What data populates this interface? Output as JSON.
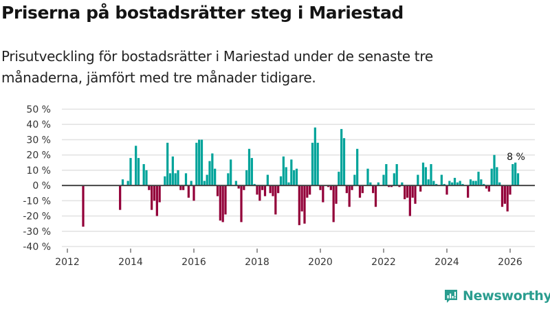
{
  "header": {
    "title": "Priserna på bostadsrätter steg i Mariestad",
    "subtitle": "Prisutveckling för bostadsrätter i Mariestad under de senaste tre månaderna, jämfört med tre månader tidigare."
  },
  "branding": {
    "logo_icon": "bar-chart-speech-bubble-icon",
    "name": "Newsworthy"
  },
  "colors": {
    "positive": "#00a39a",
    "negative": "#930039",
    "zero_line": "#444444",
    "grid": "#e3e3e3",
    "brand": "#2a9d8f"
  },
  "chart_data": {
    "type": "bar",
    "title": "Priserna på bostadsrätter steg i Mariestad",
    "subtitle": "Prisutveckling för bostadsrätter i Mariestad under de senaste tre månaderna, jämfört med tre månader tidigare.",
    "xlabel": "",
    "ylabel": "",
    "unit": "%",
    "ylim": [
      -40,
      50
    ],
    "yticks": [
      50,
      40,
      30,
      20,
      10,
      0,
      -10,
      -20,
      -30,
      -40
    ],
    "ytick_labels": [
      "50 %",
      "40 %",
      "30 %",
      "20 %",
      "10 %",
      "0 %",
      "-10 %",
      "-20 %",
      "-30 %",
      "-40 %"
    ],
    "xlim": [
      2011.85,
      2026.85
    ],
    "xticks": [
      2012,
      2014,
      2016,
      2018,
      2020,
      2022,
      2024,
      2026
    ],
    "xtick_labels": [
      "2012",
      "2014",
      "2016",
      "2018",
      "2020",
      "2022",
      "2024",
      "2026"
    ],
    "grid": true,
    "legend": "none",
    "annotation": {
      "text": "8 %",
      "target": "last"
    },
    "x_unit": "month",
    "series": [
      {
        "name": "Prisutveckling",
        "points": [
          [
            "2012-07",
            -27
          ],
          [
            "2013-09",
            -16
          ],
          [
            "2013-10",
            4
          ],
          [
            "2013-12",
            3
          ],
          [
            "2014-01",
            18
          ],
          [
            "2014-03",
            26
          ],
          [
            "2014-04",
            18
          ],
          [
            "2014-06",
            14
          ],
          [
            "2014-07",
            10
          ],
          [
            "2014-08",
            -3
          ],
          [
            "2014-09",
            -16
          ],
          [
            "2014-10",
            -10
          ],
          [
            "2014-11",
            -20
          ],
          [
            "2014-12",
            -11
          ],
          [
            "2015-02",
            6
          ],
          [
            "2015-03",
            28
          ],
          [
            "2015-04",
            8
          ],
          [
            "2015-05",
            19
          ],
          [
            "2015-06",
            8
          ],
          [
            "2015-07",
            10
          ],
          [
            "2015-08",
            -3
          ],
          [
            "2015-09",
            -3
          ],
          [
            "2015-10",
            8
          ],
          [
            "2015-11",
            -8
          ],
          [
            "2015-12",
            3
          ],
          [
            "2016-01",
            -10
          ],
          [
            "2016-02",
            28
          ],
          [
            "2016-03",
            30
          ],
          [
            "2016-04",
            30
          ],
          [
            "2016-05",
            3
          ],
          [
            "2016-06",
            7
          ],
          [
            "2016-07",
            16
          ],
          [
            "2016-08",
            21
          ],
          [
            "2016-09",
            11
          ],
          [
            "2016-10",
            -7
          ],
          [
            "2016-11",
            -23
          ],
          [
            "2016-12",
            -24
          ],
          [
            "2017-01",
            -19
          ],
          [
            "2017-02",
            8
          ],
          [
            "2017-03",
            17
          ],
          [
            "2017-05",
            3
          ],
          [
            "2017-06",
            -2
          ],
          [
            "2017-07",
            -24
          ],
          [
            "2017-08",
            -3
          ],
          [
            "2017-09",
            10
          ],
          [
            "2017-10",
            24
          ],
          [
            "2017-11",
            18
          ],
          [
            "2017-12",
            1
          ],
          [
            "2018-01",
            -6
          ],
          [
            "2018-02",
            -10
          ],
          [
            "2018-03",
            -3
          ],
          [
            "2018-04",
            -7
          ],
          [
            "2018-05",
            7
          ],
          [
            "2018-06",
            -5
          ],
          [
            "2018-07",
            -7
          ],
          [
            "2018-08",
            -19
          ],
          [
            "2018-09",
            -5
          ],
          [
            "2018-10",
            6
          ],
          [
            "2018-11",
            19
          ],
          [
            "2018-12",
            12
          ],
          [
            "2019-01",
            2
          ],
          [
            "2019-02",
            17
          ],
          [
            "2019-03",
            10
          ],
          [
            "2019-04",
            11
          ],
          [
            "2019-05",
            -26
          ],
          [
            "2019-06",
            -17
          ],
          [
            "2019-07",
            -25
          ],
          [
            "2019-08",
            -8
          ],
          [
            "2019-09",
            -6
          ],
          [
            "2019-10",
            28
          ],
          [
            "2019-11",
            38
          ],
          [
            "2019-12",
            28
          ],
          [
            "2020-01",
            -3
          ],
          [
            "2020-02",
            -11
          ],
          [
            "2020-04",
            -1
          ],
          [
            "2020-05",
            -3
          ],
          [
            "2020-06",
            -24
          ],
          [
            "2020-07",
            -12
          ],
          [
            "2020-08",
            9
          ],
          [
            "2020-09",
            37
          ],
          [
            "2020-10",
            31
          ],
          [
            "2020-11",
            -5
          ],
          [
            "2020-12",
            -14
          ],
          [
            "2021-01",
            -3
          ],
          [
            "2021-02",
            7
          ],
          [
            "2021-03",
            24
          ],
          [
            "2021-04",
            -8
          ],
          [
            "2021-05",
            -5
          ],
          [
            "2021-07",
            11
          ],
          [
            "2021-08",
            2
          ],
          [
            "2021-09",
            -5
          ],
          [
            "2021-10",
            -14
          ],
          [
            "2021-11",
            2
          ],
          [
            "2022-01",
            7
          ],
          [
            "2022-02",
            14
          ],
          [
            "2022-03",
            -1
          ],
          [
            "2022-04",
            -1
          ],
          [
            "2022-05",
            8
          ],
          [
            "2022-06",
            14
          ],
          [
            "2022-07",
            -1
          ],
          [
            "2022-08",
            2
          ],
          [
            "2022-09",
            -9
          ],
          [
            "2022-10",
            -8
          ],
          [
            "2022-11",
            -20
          ],
          [
            "2022-12",
            -8
          ],
          [
            "2023-01",
            -12
          ],
          [
            "2023-02",
            7
          ],
          [
            "2023-03",
            -4
          ],
          [
            "2023-04",
            15
          ],
          [
            "2023-05",
            12
          ],
          [
            "2023-06",
            4
          ],
          [
            "2023-07",
            14
          ],
          [
            "2023-08",
            3
          ],
          [
            "2023-09",
            1
          ],
          [
            "2023-11",
            7
          ],
          [
            "2023-12",
            1
          ],
          [
            "2024-01",
            -6
          ],
          [
            "2024-02",
            3
          ],
          [
            "2024-03",
            2
          ],
          [
            "2024-04",
            5
          ],
          [
            "2024-05",
            2
          ],
          [
            "2024-06",
            3
          ],
          [
            "2024-07",
            1
          ],
          [
            "2024-09",
            -8
          ],
          [
            "2024-10",
            4
          ],
          [
            "2024-11",
            3
          ],
          [
            "2024-12",
            3
          ],
          [
            "2025-01",
            9
          ],
          [
            "2025-02",
            4
          ],
          [
            "2025-03",
            1
          ],
          [
            "2025-04",
            -2
          ],
          [
            "2025-05",
            -4
          ],
          [
            "2025-06",
            11
          ],
          [
            "2025-07",
            20
          ],
          [
            "2025-08",
            12
          ],
          [
            "2025-09",
            2
          ],
          [
            "2025-10",
            -14
          ],
          [
            "2025-11",
            -12
          ],
          [
            "2025-12",
            -17
          ],
          [
            "2026-01",
            -6
          ],
          [
            "2026-02",
            14
          ],
          [
            "2026-03",
            15
          ],
          [
            "2026-04",
            8
          ]
        ]
      }
    ]
  }
}
